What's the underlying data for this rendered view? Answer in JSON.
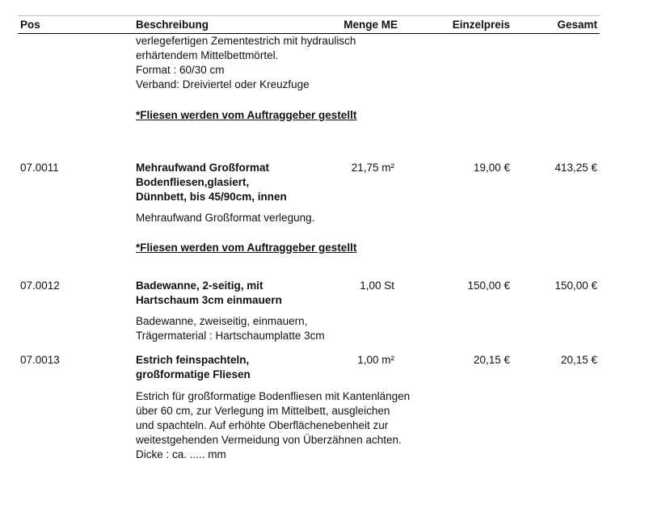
{
  "header": {
    "pos": "Pos",
    "beschreibung": "Beschreibung",
    "menge_me": "Menge ME",
    "einzelpreis": "Einzelpreis",
    "gesamt": "Gesamt"
  },
  "continuation": {
    "lines": [
      "verlegefertigen Zementestrich mit hydraulisch",
      "erhärtendem Mittelbettmörtel.",
      "Format : 60/30 cm",
      "Verband: Dreiviertel oder Kreuzfuge"
    ],
    "note": "*Fliesen werden vom Auftraggeber gestellt"
  },
  "items": [
    {
      "pos": "07.0011",
      "title": [
        "Mehraufwand Großformat",
        "Bodenfliesen,glasiert,",
        "Dünnbett, bis 45/90cm, innen"
      ],
      "menge": "21,75 m²",
      "einzelpreis": "19,00 €",
      "gesamt": "413,25 €",
      "desc": [
        "Mehraufwand Großformat verlegung."
      ],
      "note": "*Fliesen werden vom Auftraggeber gestellt"
    },
    {
      "pos": "07.0012",
      "title": [
        "Badewanne, 2-seitig, mit",
        "Hartschaum 3cm einmauern"
      ],
      "menge": "1,00 St",
      "einzelpreis": "150,00 €",
      "gesamt": "150,00 €",
      "desc": [
        "Badewanne, zweiseitig, einmauern,",
        "Trägermaterial : Hartschaumplatte 3cm"
      ]
    },
    {
      "pos": "07.0013",
      "title": [
        "Estrich feinspachteln,",
        "großformatige Fliesen"
      ],
      "menge": "1,00 m²",
      "einzelpreis": "20,15 €",
      "gesamt": "20,15 €",
      "desc": [
        "Estrich für großformatige Bodenfliesen mit Kantenlängen",
        "über 60 cm, zur Verlegung im Mittelbett, ausgleichen",
        "und spachteln. Auf erhöhte Oberflächenebenheit zur",
        "weitestgehenden Vermeidung von Überzähnen achten.",
        "Dicke : ca. ..... mm"
      ]
    }
  ]
}
